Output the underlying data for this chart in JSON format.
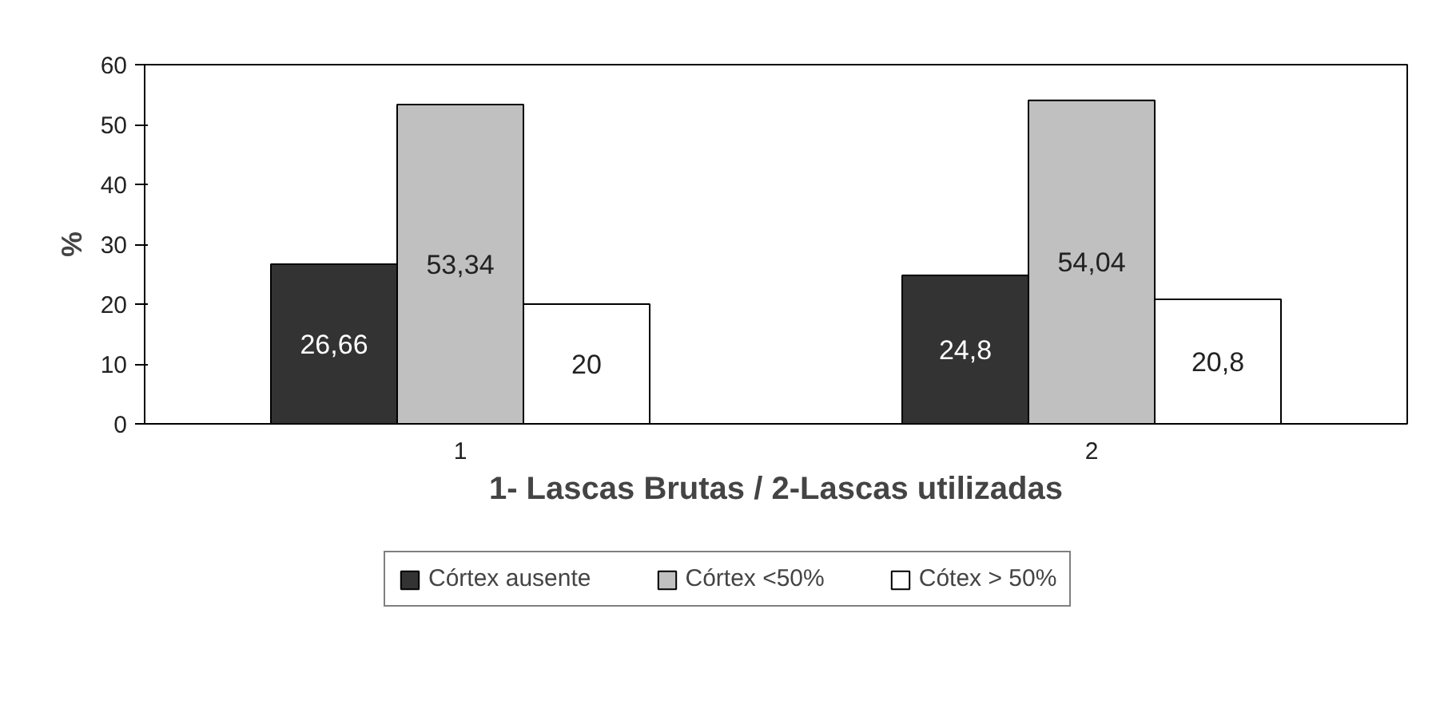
{
  "chart_data": {
    "type": "bar",
    "xlabel": "1- Lascas Brutas / 2-Lascas utilizadas",
    "ylabel": "%",
    "categories": [
      "1",
      "2"
    ],
    "series": [
      {
        "name": "Córtex ausente",
        "color": "#333333",
        "values": [
          26.66,
          24.8
        ],
        "value_labels": [
          "26,66",
          "24,8"
        ]
      },
      {
        "name": "Córtex <50%",
        "color": "#c0c0c0",
        "values": [
          53.34,
          54.04
        ],
        "value_labels": [
          "53,34",
          "54,04"
        ]
      },
      {
        "name": "Cótex > 50%",
        "color": "#ffffff",
        "values": [
          20,
          20.8
        ],
        "value_labels": [
          "20",
          "20,8"
        ]
      }
    ],
    "ylim": [
      0,
      60
    ],
    "yticks": [
      0,
      10,
      20,
      30,
      40,
      50,
      60
    ],
    "grid": false,
    "legend": "bottom"
  }
}
